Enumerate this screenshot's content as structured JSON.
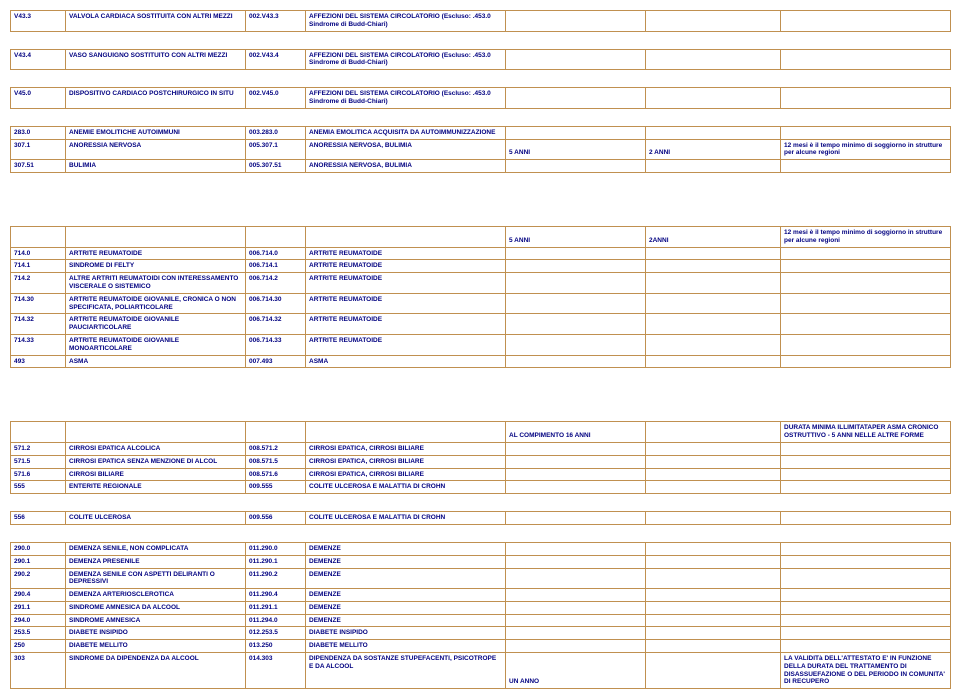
{
  "rows": [
    {
      "a": "V43.3",
      "b": "VALVOLA CARDIACA SOSTITUITA CON ALTRI MEZZI",
      "c": "002.V43.3",
      "d": "AFFEZIONI DEL SISTEMA CIRCOLATORIO (Escluso: .453.0 Sindrome di Budd-Chiari)",
      "e": "",
      "f": "",
      "g": ""
    },
    {
      "spacer": true
    },
    {
      "a": "V43.4",
      "b": "VASO SANGUIGNO SOSTITUITO CON ALTRI MEZZI",
      "c": "002.V43.4",
      "d": "AFFEZIONI DEL SISTEMA CIRCOLATORIO (Escluso: .453.0 Sindrome di Budd-Chiari)",
      "e": "",
      "f": "",
      "g": ""
    },
    {
      "spacer": true
    },
    {
      "a": "V45.0",
      "b": "DISPOSITIVO CARDIACO POSTCHIRURGICO IN SITU",
      "c": "002.V45.0",
      "d": "AFFEZIONI DEL SISTEMA CIRCOLATORIO (Escluso: .453.0 Sindrome di Budd-Chiari)",
      "e": "",
      "f": "",
      "g": ""
    },
    {
      "spacer": true
    },
    {
      "a": "283.0",
      "b": "ANEMIE EMOLITICHE AUTOIMMUNI",
      "c": "003.283.0",
      "d": "ANEMIA EMOLITICA ACQUISITA DA AUTOIMMUNIZZAZIONE",
      "e": "",
      "f": "",
      "g": ""
    },
    {
      "a": "307.1",
      "b": "ANORESSIA NERVOSA",
      "c": "005.307.1",
      "d": "ANORESSIA NERVOSA, BULIMIA",
      "e": "5 ANNI",
      "f": "2 ANNI",
      "g": "12 mesi è il tempo minimo di soggiorno in strutture per alcune regioni",
      "ealign": "bottom"
    },
    {
      "a": "307.51",
      "b": "BULIMIA",
      "c": "005.307.51",
      "d": "ANORESSIA NERVOSA, BULIMIA",
      "e": "",
      "f": "",
      "g": ""
    },
    {
      "spacer": true
    },
    {
      "spacer": true
    },
    {
      "spacer": true
    },
    {
      "a": "",
      "b": "",
      "c": "",
      "d": "",
      "e": "5 ANNI",
      "f": "2ANNI",
      "g": "12 mesi  è il tempo minimo di soggiorno in strutture per alcune regioni",
      "ealign": "bottom"
    },
    {
      "a": "714.0",
      "b": "ARTRITE REUMATOIDE",
      "c": "006.714.0",
      "d": "ARTRITE REUMATOIDE",
      "e": "",
      "f": "",
      "g": ""
    },
    {
      "a": "714.1",
      "b": "SINDROME DI FELTY",
      "c": "006.714.1",
      "d": "ARTRITE REUMATOIDE",
      "e": "",
      "f": "",
      "g": ""
    },
    {
      "a": "714.2",
      "b": "ALTRE ARTRITI REUMATOIDI CON INTERESSAMENTO VISCERALE O SISTEMICO",
      "c": "006.714.2",
      "d": "ARTRITE REUMATOIDE",
      "e": "",
      "f": "",
      "g": ""
    },
    {
      "a": "714.30",
      "b": "ARTRITE REUMATOIDE GIOVANILE, CRONICA O NON SPECIFICATA, POLIARTICOLARE",
      "c": "006.714.30",
      "d": "ARTRITE REUMATOIDE",
      "e": "",
      "f": "",
      "g": ""
    },
    {
      "a": "714.32",
      "b": "ARTRITE REUMATOIDE GIOVANILE PAUCIARTICOLARE",
      "c": "006.714.32",
      "d": "ARTRITE REUMATOIDE",
      "e": "",
      "f": "",
      "g": ""
    },
    {
      "a": "714.33",
      "b": "ARTRITE REUMATOIDE GIOVANILE MONOARTICOLARE",
      "c": "006.714.33",
      "d": "ARTRITE REUMATOIDE",
      "e": "",
      "f": "",
      "g": ""
    },
    {
      "a": "493",
      "b": "ASMA",
      "c": "007.493",
      "d": "ASMA",
      "e": "",
      "f": "",
      "g": ""
    },
    {
      "spacer": true
    },
    {
      "spacer": true
    },
    {
      "spacer": true
    },
    {
      "a": "",
      "b": "",
      "c": "",
      "d": "",
      "e": "AL COMPIMENTO 16 ANNI",
      "f": "",
      "g": "DURATA MINIMA  ILLIMITATAPER ASMA CRONICO OSTRUTTIVO - 5 ANNI NELLE ALTRE FORME",
      "ealign": "bottom"
    },
    {
      "a": "571.2",
      "b": "CIRROSI EPATICA ALCOLICA",
      "c": "008.571.2",
      "d": "CIRROSI EPATICA, CIRROSI BILIARE",
      "e": "",
      "f": "",
      "g": ""
    },
    {
      "a": "571.5",
      "b": "CIRROSI EPATICA SENZA MENZIONE DI ALCOL",
      "c": "008.571.5",
      "d": "CIRROSI EPATICA, CIRROSI BILIARE",
      "e": "",
      "f": "",
      "g": ""
    },
    {
      "a": "571.6",
      "b": "CIRROSI BILIARE",
      "c": "008.571.6",
      "d": "CIRROSI EPATICA, CIRROSI BILIARE",
      "e": "",
      "f": "",
      "g": ""
    },
    {
      "a": "555",
      "b": "ENTERITE REGIONALE",
      "c": "009.555",
      "d": "COLITE ULCEROSA E MALATTIA DI CROHN",
      "e": "",
      "f": "",
      "g": ""
    },
    {
      "spacer": true
    },
    {
      "a": "556",
      "b": "COLITE ULCEROSA",
      "c": "009.556",
      "d": "COLITE ULCEROSA E MALATTIA DI CROHN",
      "e": "",
      "f": "",
      "g": ""
    },
    {
      "spacer": true
    },
    {
      "a": "290.0",
      "b": "DEMENZA SENILE, NON COMPLICATA",
      "c": "011.290.0",
      "d": "DEMENZE",
      "e": "",
      "f": "",
      "g": ""
    },
    {
      "a": "290.1",
      "b": "DEMENZA PRESENILE",
      "c": "011.290.1",
      "d": "DEMENZE",
      "e": "",
      "f": "",
      "g": ""
    },
    {
      "a": "290.2",
      "b": "DEMENZA SENILE CON ASPETTI DELIRANTI O DEPRESSIVI",
      "c": "011.290.2",
      "d": "DEMENZE",
      "e": "",
      "f": "",
      "g": ""
    },
    {
      "a": "290.4",
      "b": "DEMENZA ARTERIOSCLEROTICA",
      "c": "011.290.4",
      "d": "DEMENZE",
      "e": "",
      "f": "",
      "g": ""
    },
    {
      "a": "291.1",
      "b": "SINDROME AMNESICA DA ALCOOL",
      "c": "011.291.1",
      "d": "DEMENZE",
      "e": "",
      "f": "",
      "g": ""
    },
    {
      "a": "294.0",
      "b": "SINDROME AMNESICA",
      "c": "011.294.0",
      "d": "DEMENZE",
      "e": "",
      "f": "",
      "g": ""
    },
    {
      "a": "253.5",
      "b": "DIABETE INSIPIDO",
      "c": "012.253.5",
      "d": "DIABETE INSIPIDO",
      "e": "",
      "f": "",
      "g": ""
    },
    {
      "a": "250",
      "b": "DIABETE MELLITO",
      "c": "013.250",
      "d": "DIABETE MELLITO",
      "e": "",
      "f": "",
      "g": ""
    },
    {
      "a": "303",
      "b": "SINDROME DA DIPENDENZA DA ALCOOL",
      "c": "014.303",
      "d": "DIPENDENZA DA SOSTANZE STUPEFACENTI, PSICOTROPE E DA ALCOOL",
      "e": "UN ANNO",
      "f": "",
      "g": "LA VALIDITà DELL'ATTESTATO E' IN FUNZIONE DELLA DURATA DEL TRATTAMENTO DI DISASSUEFAZIONE O DEL PERIODO IN COMUNITA' DI RECUPERO",
      "ealign": "bottom"
    }
  ]
}
